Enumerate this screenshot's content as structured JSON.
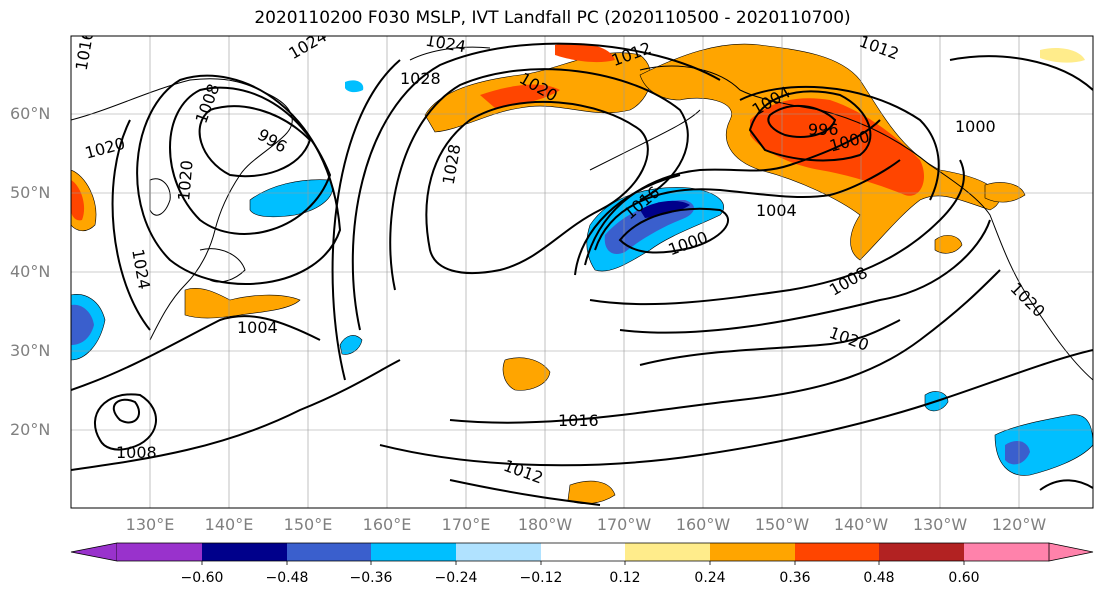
{
  "title": "2020110200 F030 MSLP, IVT Landfall PC (2020110500 - 2020110700)",
  "lat_labels": [
    "60°N",
    "50°N",
    "40°N",
    "30°N",
    "20°N"
  ],
  "lon_labels": [
    "130°E",
    "140°E",
    "150°E",
    "160°E",
    "170°E",
    "180°W",
    "170°W",
    "160°W",
    "150°W",
    "140°W",
    "130°W",
    "120°W"
  ],
  "colorbar": {
    "ticks": [
      "−0.60",
      "−0.48",
      "−0.36",
      "−0.24",
      "−0.12",
      "0.12",
      "0.24",
      "0.36",
      "0.48",
      "0.60"
    ],
    "colors": [
      "#9932cc",
      "#00008b",
      "#3a5fcd",
      "#00bfff",
      "#b0e2ff",
      "#ffffff",
      "#ffec8b",
      "#ffa500",
      "#ff4500",
      "#b22222",
      "#ff82ab"
    ]
  },
  "contour_labels": [
    "1016",
    "1020",
    "1024",
    "1028",
    "1028",
    "1024",
    "1020",
    "1012",
    "1012",
    "1004",
    "996",
    "1000",
    "1000",
    "996",
    "1008",
    "1020",
    "1024",
    "1004",
    "1008",
    "1016",
    "1004",
    "1000",
    "1008",
    "1020",
    "1020",
    "1016",
    "1012"
  ]
}
